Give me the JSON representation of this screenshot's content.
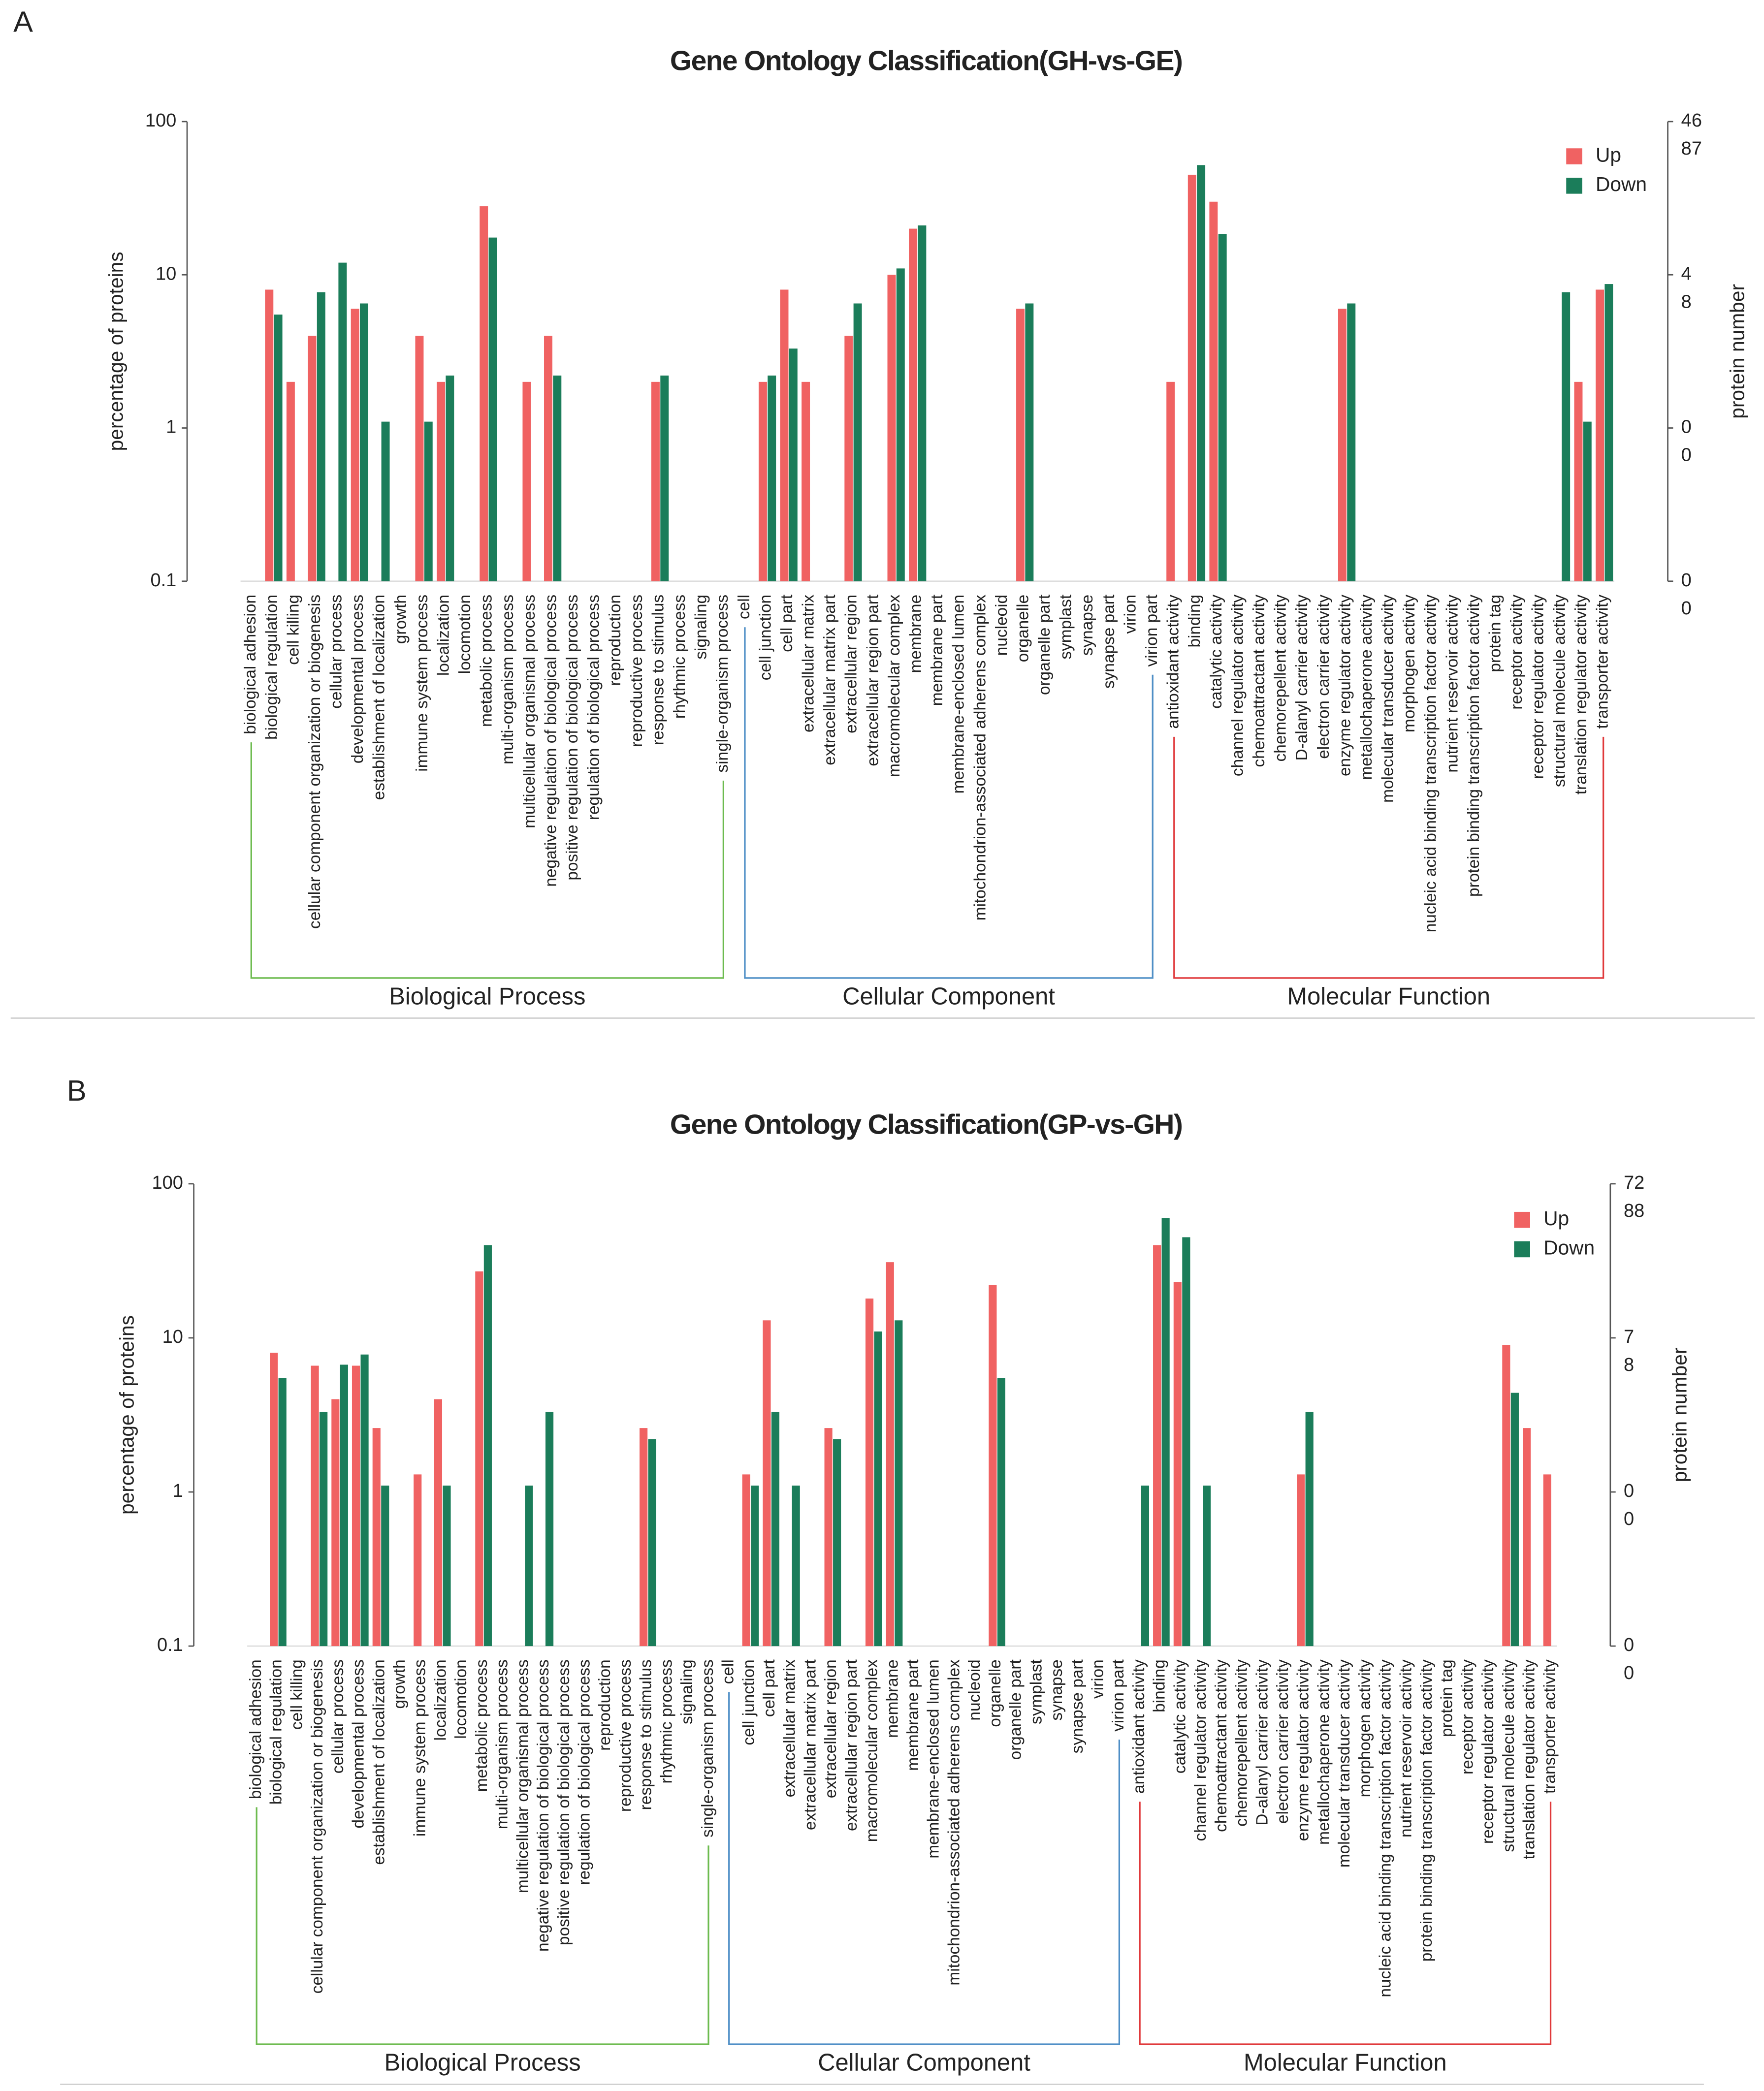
{
  "chart_data": [
    {
      "panel": "A",
      "type": "bar",
      "title": "Gene Ontology Classification(GH-vs-GE)",
      "ylabel": "percentage of proteins",
      "y2label": "protein number",
      "yscale": "log",
      "ylim": [
        0.1,
        100
      ],
      "yticks": [
        0.1,
        1,
        10,
        100
      ],
      "y2lim": [
        0.1,
        100
      ],
      "legend": "upper right",
      "series": [
        {
          "name": "Up",
          "color": "#f06262",
          "y2ticks": [
            {
              "value": 100,
              "label": "46"
            },
            {
              "value": 10,
              "label": "4"
            },
            {
              "value": 1,
              "label": "0"
            },
            {
              "value": 0.1,
              "label": "0"
            }
          ],
          "values": [
            0,
            8,
            2,
            4,
            0,
            6,
            0,
            0,
            4,
            2,
            0,
            28,
            0,
            2,
            4,
            0,
            0,
            0,
            0,
            2,
            0,
            0,
            0,
            0,
            2,
            8,
            2,
            0,
            4,
            0,
            10,
            20,
            0,
            0,
            0,
            0,
            6,
            0,
            0,
            0,
            0,
            0,
            0,
            2,
            45,
            30,
            0,
            0,
            0,
            0,
            0,
            6,
            0,
            0,
            0,
            0,
            0,
            0,
            0,
            0,
            0,
            0,
            2,
            8
          ]
        },
        {
          "name": "Down",
          "color": "#1b7d5a",
          "y2ticks": [
            {
              "value": 100,
              "label": "87"
            },
            {
              "value": 10,
              "label": "8"
            },
            {
              "value": 1,
              "label": "0"
            },
            {
              "value": 0.1,
              "label": "0"
            }
          ],
          "values": [
            0,
            5.5,
            0,
            7.7,
            12,
            6.5,
            1.1,
            0,
            1.1,
            2.2,
            0,
            17.5,
            0,
            0,
            2.2,
            0,
            0,
            0,
            0,
            2.2,
            0,
            0,
            0,
            0,
            2.2,
            3.3,
            0,
            0,
            6.5,
            0,
            11,
            21,
            0,
            0,
            0,
            0,
            6.5,
            0,
            0,
            0,
            0,
            0,
            0,
            0,
            52,
            18.5,
            0,
            0,
            0,
            0,
            0,
            6.5,
            0,
            0,
            0,
            0,
            0,
            0,
            0,
            0,
            0,
            7.7,
            1.1,
            8.7
          ]
        }
      ],
      "groups": [
        {
          "name": "Biological Process",
          "color": "#6dbb4f",
          "categories": [
            "biological adhesion",
            "biological regulation",
            "cell killing",
            "cellular component organization or biogenesis",
            "cellular process",
            "developmental process",
            "establishment of localization",
            "growth",
            "immune system process",
            "localization",
            "locomotion",
            "metabolic process",
            "multi-organism process",
            "multicellular organismal process",
            "negative regulation of biological process",
            "positive regulation of biological process",
            "regulation of biological process",
            "reproduction",
            "reproductive process",
            "response to stimulus",
            "rhythmic process",
            "signaling",
            "single-organism process"
          ]
        },
        {
          "name": "Cellular Component",
          "color": "#4f8fc6",
          "categories": [
            "cell",
            "cell junction",
            "cell part",
            "extracellular matrix",
            "extracellular matrix part",
            "extracellular region",
            "extracellular region part",
            "macromolecular complex",
            "membrane",
            "membrane part",
            "membrane-enclosed lumen",
            "mitochondrion-associated adherens complex",
            "nucleoid",
            "organelle",
            "organelle part",
            "symplast",
            "synapse",
            "synapse part",
            "virion",
            "virion part"
          ]
        },
        {
          "name": "Molecular Function",
          "color": "#e0393b",
          "categories": [
            "antioxidant activity",
            "binding",
            "catalytic activity",
            "channel regulator activity",
            "chemoattractant activity",
            "chemorepellent activity",
            "D-alanyl carrier activity",
            "electron carrier activity",
            "enzyme regulator activity",
            "metallochaperone activity",
            "molecular transducer activity",
            "morphogen activity",
            "nucleic acid binding transcription factor activity",
            "nutrient reservoir activity",
            "protein binding transcription factor activity",
            "protein tag",
            "receptor activity",
            "receptor regulator activity",
            "structural molecule activity",
            "translation regulator activity",
            "transporter activity"
          ]
        }
      ]
    },
    {
      "panel": "B",
      "type": "bar",
      "title": "Gene Ontology Classification(GP-vs-GH)",
      "ylabel": "percentage of proteins",
      "y2label": "protein number",
      "yscale": "log",
      "ylim": [
        0.1,
        100
      ],
      "yticks": [
        0.1,
        1,
        10,
        100
      ],
      "y2lim": [
        0.1,
        100
      ],
      "legend": "upper right",
      "series": [
        {
          "name": "Up",
          "color": "#f06262",
          "y2ticks": [
            {
              "value": 100,
              "label": "72"
            },
            {
              "value": 10,
              "label": "7"
            },
            {
              "value": 1,
              "label": "0"
            },
            {
              "value": 0.1,
              "label": "0"
            }
          ],
          "values": [
            0,
            8,
            0,
            6.6,
            4,
            6.6,
            2.6,
            0,
            1.3,
            4,
            0,
            27,
            0,
            0,
            0,
            0,
            0,
            0,
            0,
            2.6,
            0,
            0,
            0,
            0,
            1.3,
            13,
            0,
            0,
            2.6,
            0,
            18,
            31,
            0,
            0,
            0,
            0,
            22,
            0,
            0,
            0,
            0,
            0,
            0,
            0,
            40,
            23,
            0,
            0,
            0,
            0,
            0,
            1.3,
            0,
            0,
            0,
            0,
            0,
            0,
            0,
            0,
            0,
            9,
            2.6,
            1.3
          ]
        },
        {
          "name": "Down",
          "color": "#1b7d5a",
          "y2ticks": [
            {
              "value": 100,
              "label": "88"
            },
            {
              "value": 10,
              "label": "8"
            },
            {
              "value": 1,
              "label": "0"
            },
            {
              "value": 0.1,
              "label": "0"
            }
          ],
          "values": [
            0,
            5.5,
            0,
            3.3,
            6.7,
            7.8,
            1.1,
            0,
            0,
            1.1,
            0,
            40,
            0,
            1.1,
            3.3,
            0,
            0,
            0,
            0,
            2.2,
            0,
            0,
            0,
            0,
            1.1,
            3.3,
            1.1,
            0,
            2.2,
            0,
            11,
            13,
            0,
            0,
            0,
            0,
            5.5,
            0,
            0,
            0,
            0,
            0,
            0,
            1.1,
            60,
            45,
            1.1,
            0,
            0,
            0,
            0,
            3.3,
            0,
            0,
            0,
            0,
            0,
            0,
            0,
            0,
            0,
            4.4,
            0,
            0
          ]
        }
      ],
      "groups": [
        {
          "name": "Biological Process",
          "color": "#6dbb4f",
          "categories": [
            "biological adhesion",
            "biological regulation",
            "cell killing",
            "cellular component organization or biogenesis",
            "cellular process",
            "developmental process",
            "establishment of localization",
            "growth",
            "immune system process",
            "localization",
            "locomotion",
            "metabolic process",
            "multi-organism process",
            "multicellular organismal process",
            "negative regulation of biological process",
            "positive regulation of biological process",
            "regulation of biological process",
            "reproduction",
            "reproductive process",
            "response to stimulus",
            "rhythmic process",
            "signaling",
            "single-organism process"
          ]
        },
        {
          "name": "Cellular Component",
          "color": "#4f8fc6",
          "categories": [
            "cell",
            "cell junction",
            "cell part",
            "extracellular matrix",
            "extracellular matrix part",
            "extracellular region",
            "extracellular region part",
            "macromolecular complex",
            "membrane",
            "membrane part",
            "membrane-enclosed lumen",
            "mitochondrion-associated adherens complex",
            "nucleoid",
            "organelle",
            "organelle part",
            "symplast",
            "synapse",
            "synapse part",
            "virion",
            "virion part"
          ]
        },
        {
          "name": "Molecular Function",
          "color": "#e0393b",
          "categories": [
            "antioxidant activity",
            "binding",
            "catalytic activity",
            "channel regulator activity",
            "chemoattractant activity",
            "chemorepellent activity",
            "D-alanyl carrier activity",
            "electron carrier activity",
            "enzyme regulator activity",
            "metallochaperone activity",
            "molecular transducer activity",
            "morphogen activity",
            "nucleic acid binding transcription factor activity",
            "nutrient reservoir activity",
            "protein binding transcription factor activity",
            "protein tag",
            "receptor activity",
            "receptor regulator activity",
            "structural molecule activity",
            "translation regulator activity",
            "transporter activity"
          ]
        }
      ]
    }
  ]
}
